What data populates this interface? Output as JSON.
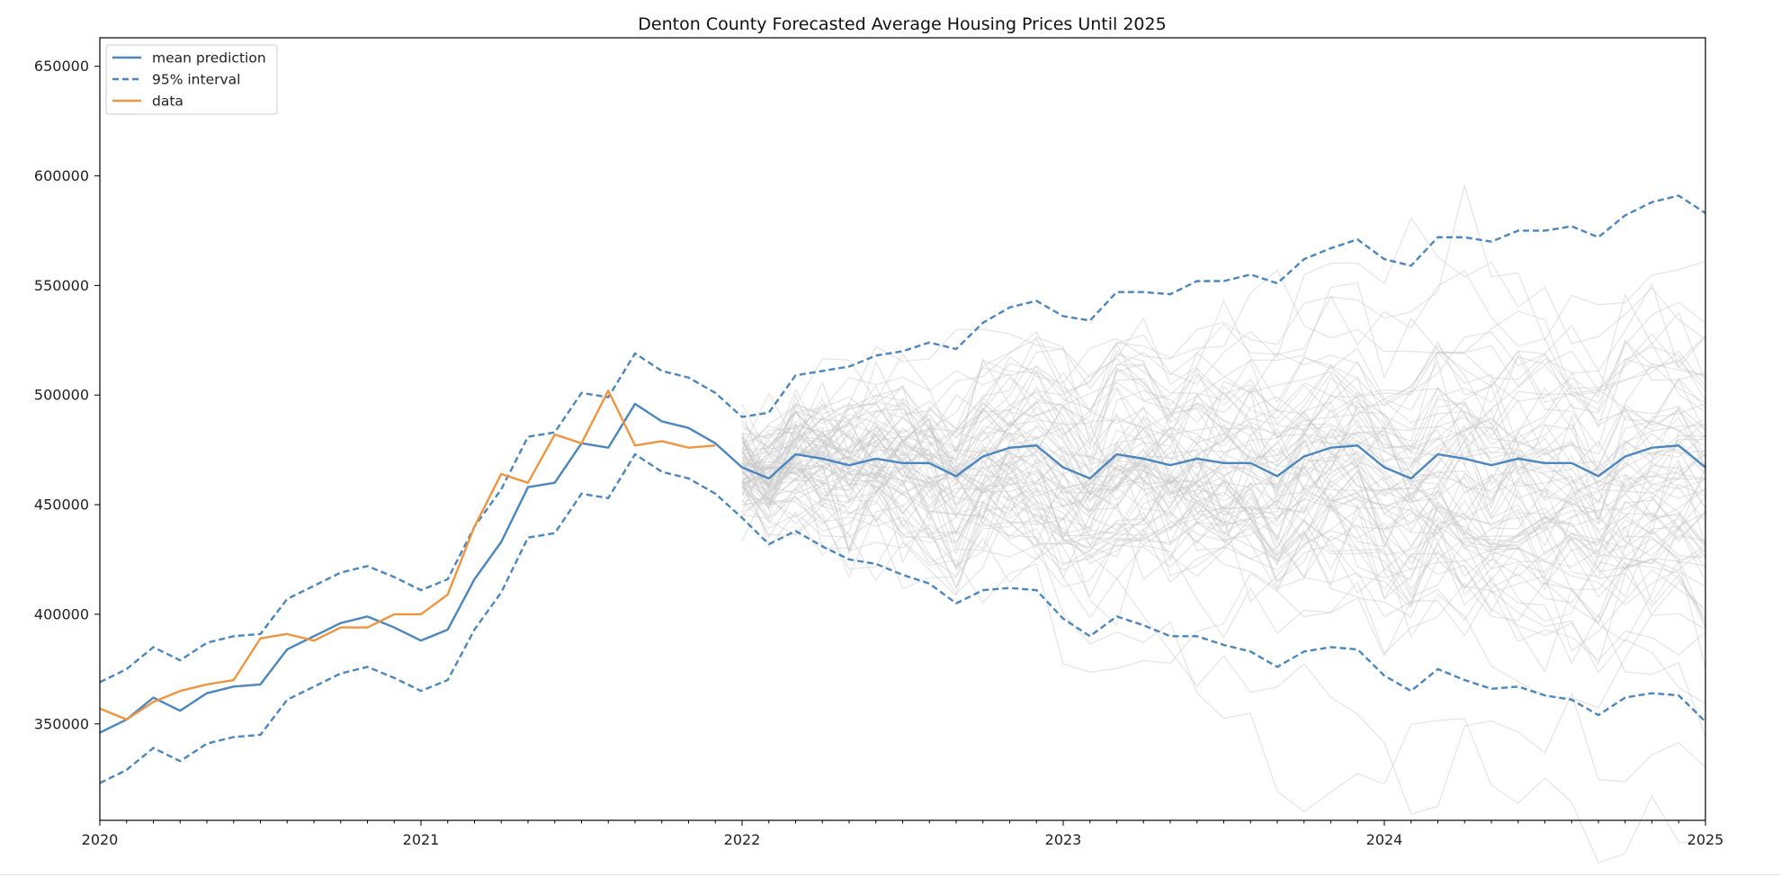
{
  "chart_data": {
    "type": "line",
    "title": "Denton County Forecasted Average Housing Prices Until 2025",
    "xlabel": "",
    "ylabel": "",
    "x_tick_labels": [
      "2020",
      "2021",
      "2022",
      "2023",
      "2024",
      "2025"
    ],
    "y_tick_labels": [
      "350000",
      "400000",
      "450000",
      "500000",
      "550000",
      "600000",
      "650000"
    ],
    "x_range": [
      "2020-01",
      "2025-01"
    ],
    "ylim": [
      306000,
      663000
    ],
    "grid": false,
    "legend_position": "top-left",
    "colors": {
      "mean_prediction": "#4a86c0",
      "interval": "#4a86c0",
      "data": "#f0953f",
      "simulations": "#c8c8c8"
    },
    "legend": [
      {
        "label": "mean prediction",
        "style": "solid",
        "color": "#4a86c0"
      },
      {
        "label": "95% interval",
        "style": "dashed",
        "color": "#4a86c0"
      },
      {
        "label": "data",
        "style": "solid",
        "color": "#f0953f"
      }
    ],
    "months": [
      "2020-01",
      "2020-02",
      "2020-03",
      "2020-04",
      "2020-05",
      "2020-06",
      "2020-07",
      "2020-08",
      "2020-09",
      "2020-10",
      "2020-11",
      "2020-12",
      "2021-01",
      "2021-02",
      "2021-03",
      "2021-04",
      "2021-05",
      "2021-06",
      "2021-07",
      "2021-08",
      "2021-09",
      "2021-10",
      "2021-11",
      "2021-12",
      "2022-01",
      "2022-02",
      "2022-03",
      "2022-04",
      "2022-05",
      "2022-06",
      "2022-07",
      "2022-08",
      "2022-09",
      "2022-10",
      "2022-11",
      "2022-12",
      "2023-01",
      "2023-02",
      "2023-03",
      "2023-04",
      "2023-05",
      "2023-06",
      "2023-07",
      "2023-08",
      "2023-09",
      "2023-10",
      "2023-11",
      "2023-12",
      "2024-01",
      "2024-02",
      "2024-03",
      "2024-04",
      "2024-05",
      "2024-06",
      "2024-07",
      "2024-08",
      "2024-09",
      "2024-10",
      "2024-11",
      "2024-12",
      "2025-01"
    ],
    "series": [
      {
        "name": "mean prediction",
        "style": "solid",
        "values": [
          346000,
          352000,
          362000,
          356000,
          364000,
          367000,
          368000,
          384000,
          390000,
          396000,
          399000,
          394000,
          388000,
          393000,
          416000,
          433000,
          458000,
          460000,
          478000,
          476000,
          496000,
          488000,
          485000,
          478000,
          467000,
          462000,
          473000,
          471000,
          468000,
          471000,
          469000,
          469000,
          463000,
          472000,
          476000,
          477000,
          467000,
          462000,
          473000,
          471000,
          468000,
          471000,
          469000,
          469000,
          463000,
          472000,
          476000,
          477000,
          467000,
          462000,
          473000,
          471000,
          468000,
          471000,
          469000,
          469000,
          463000,
          472000,
          476000,
          477000,
          467000
        ]
      },
      {
        "name": "95% interval",
        "style": "dashed",
        "values": [
          369000,
          375000,
          385000,
          379000,
          387000,
          390000,
          391000,
          407000,
          413000,
          419000,
          422000,
          417000,
          411000,
          416000,
          440000,
          457000,
          481000,
          483000,
          501000,
          499000,
          519000,
          511000,
          508000,
          501000,
          490000,
          492000,
          509000,
          511000,
          513000,
          518000,
          520000,
          524000,
          521000,
          533000,
          540000,
          543000,
          536000,
          534000,
          547000,
          547000,
          546000,
          552000,
          552000,
          555000,
          551000,
          562000,
          567000,
          571000,
          562000,
          559000,
          572000,
          572000,
          570000,
          575000,
          575000,
          577000,
          572000,
          582000,
          588000,
          591000,
          583000
        ]
      },
      {
        "name": "95% interval lower",
        "style": "dashed",
        "values": [
          323000,
          329000,
          339000,
          333000,
          341000,
          344000,
          345000,
          361000,
          367000,
          373000,
          376000,
          371000,
          365000,
          370000,
          393000,
          410000,
          435000,
          437000,
          455000,
          453000,
          473000,
          465000,
          462000,
          455000,
          444000,
          432000,
          438000,
          431000,
          425000,
          423000,
          418000,
          414000,
          405000,
          411000,
          412000,
          411000,
          398000,
          390000,
          399000,
          395000,
          390000,
          390000,
          386000,
          383000,
          376000,
          383000,
          385000,
          384000,
          372000,
          365000,
          375000,
          370000,
          366000,
          367000,
          363000,
          361000,
          354000,
          362000,
          364000,
          363000,
          351000
        ]
      },
      {
        "name": "data",
        "style": "solid",
        "values": [
          357000,
          352000,
          360000,
          365000,
          368000,
          370000,
          389000,
          391000,
          388000,
          394000,
          394000,
          400000,
          400000,
          409000,
          440000,
          464000,
          460000,
          482000,
          478000,
          502000,
          477000,
          479000,
          476000,
          477000
        ]
      }
    ],
    "simulations": {
      "count": 80,
      "start": "2022-01",
      "end": "2025-01"
    }
  }
}
